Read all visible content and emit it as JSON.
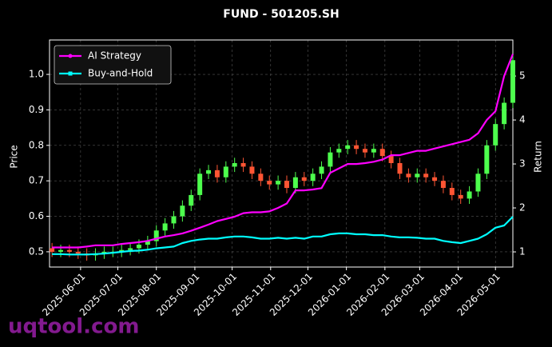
{
  "chart_data": {
    "type": "candlestick",
    "title": "FUND - 501205.SH",
    "ylabel": "Price",
    "y2label": "Return",
    "watermark": "uqtool.com",
    "legend": "upper left",
    "grid": true,
    "up_color": "#4dff4d",
    "down_color": "#ff5533",
    "x": [
      "2025-05-09",
      "2025-05-16",
      "2025-05-23",
      "2025-05-30",
      "2025-06-06",
      "2025-06-13",
      "2025-06-20",
      "2025-06-27",
      "2025-07-04",
      "2025-07-11",
      "2025-07-18",
      "2025-07-25",
      "2025-08-01",
      "2025-08-08",
      "2025-08-15",
      "2025-08-22",
      "2025-08-29",
      "2025-09-05",
      "2025-09-12",
      "2025-09-19",
      "2025-09-26",
      "2025-10-03",
      "2025-10-10",
      "2025-10-17",
      "2025-10-24",
      "2025-10-31",
      "2025-11-07",
      "2025-11-14",
      "2025-11-21",
      "2025-11-28",
      "2025-12-05",
      "2025-12-12",
      "2025-12-19",
      "2025-12-26",
      "2026-01-02",
      "2026-01-09",
      "2026-01-16",
      "2026-01-23",
      "2026-01-30",
      "2026-02-06",
      "2026-02-13",
      "2026-02-20",
      "2026-02-27",
      "2026-03-06",
      "2026-03-13",
      "2026-03-20",
      "2026-03-27",
      "2026-04-03",
      "2026-04-10",
      "2026-04-17",
      "2026-04-24",
      "2026-05-01",
      "2026-05-08",
      "2026-05-15"
    ],
    "open": [
      0.51,
      0.5,
      0.505,
      0.5,
      0.495,
      0.49,
      0.495,
      0.5,
      0.5,
      0.505,
      0.51,
      0.52,
      0.53,
      0.56,
      0.58,
      0.6,
      0.63,
      0.66,
      0.72,
      0.73,
      0.71,
      0.74,
      0.75,
      0.74,
      0.72,
      0.7,
      0.69,
      0.7,
      0.68,
      0.71,
      0.7,
      0.72,
      0.74,
      0.78,
      0.79,
      0.8,
      0.79,
      0.78,
      0.79,
      0.77,
      0.75,
      0.72,
      0.71,
      0.72,
      0.71,
      0.7,
      0.68,
      0.66,
      0.65,
      0.67,
      0.72,
      0.8,
      0.86,
      0.92
    ],
    "high": [
      0.525,
      0.52,
      0.52,
      0.515,
      0.51,
      0.51,
      0.515,
      0.515,
      0.52,
      0.525,
      0.535,
      0.545,
      0.575,
      0.595,
      0.615,
      0.645,
      0.675,
      0.735,
      0.745,
      0.745,
      0.755,
      0.765,
      0.765,
      0.755,
      0.735,
      0.715,
      0.715,
      0.715,
      0.725,
      0.725,
      0.735,
      0.755,
      0.795,
      0.805,
      0.815,
      0.815,
      0.805,
      0.805,
      0.805,
      0.785,
      0.765,
      0.735,
      0.735,
      0.735,
      0.725,
      0.715,
      0.695,
      0.675,
      0.685,
      0.735,
      0.815,
      0.875,
      0.935,
      1.055
    ],
    "low": [
      0.485,
      0.485,
      0.485,
      0.48,
      0.475,
      0.475,
      0.48,
      0.485,
      0.485,
      0.49,
      0.495,
      0.505,
      0.515,
      0.545,
      0.565,
      0.585,
      0.615,
      0.645,
      0.705,
      0.695,
      0.695,
      0.725,
      0.725,
      0.705,
      0.685,
      0.675,
      0.675,
      0.665,
      0.665,
      0.685,
      0.685,
      0.705,
      0.725,
      0.765,
      0.775,
      0.775,
      0.765,
      0.765,
      0.755,
      0.735,
      0.705,
      0.695,
      0.695,
      0.695,
      0.685,
      0.665,
      0.645,
      0.635,
      0.635,
      0.655,
      0.705,
      0.785,
      0.845,
      0.905
    ],
    "close": [
      0.5,
      0.505,
      0.5,
      0.495,
      0.49,
      0.495,
      0.5,
      0.5,
      0.505,
      0.51,
      0.52,
      0.53,
      0.56,
      0.58,
      0.6,
      0.63,
      0.66,
      0.72,
      0.73,
      0.71,
      0.74,
      0.75,
      0.74,
      0.72,
      0.7,
      0.69,
      0.7,
      0.68,
      0.71,
      0.7,
      0.72,
      0.74,
      0.78,
      0.79,
      0.8,
      0.79,
      0.78,
      0.79,
      0.77,
      0.75,
      0.72,
      0.71,
      0.72,
      0.71,
      0.7,
      0.68,
      0.66,
      0.65,
      0.67,
      0.72,
      0.8,
      0.86,
      0.92,
      1.04
    ],
    "series": [
      {
        "name": "AI Strategy",
        "color": "#ff00ff",
        "axis": "y2",
        "values": [
          1.1,
          1.1,
          1.1,
          1.1,
          1.12,
          1.15,
          1.15,
          1.15,
          1.18,
          1.2,
          1.22,
          1.25,
          1.3,
          1.35,
          1.38,
          1.42,
          1.48,
          1.55,
          1.62,
          1.7,
          1.75,
          1.8,
          1.88,
          1.9,
          1.9,
          1.92,
          2.0,
          2.1,
          2.4,
          2.4,
          2.42,
          2.45,
          2.8,
          2.9,
          3.0,
          3.0,
          3.02,
          3.05,
          3.1,
          3.2,
          3.2,
          3.25,
          3.3,
          3.3,
          3.35,
          3.4,
          3.45,
          3.5,
          3.55,
          3.7,
          4.0,
          4.2,
          5.0,
          5.5
        ]
      },
      {
        "name": "Buy-and-Hold",
        "color": "#00ffff",
        "axis": "y2",
        "values": [
          0.95,
          0.95,
          0.94,
          0.94,
          0.94,
          0.95,
          0.96,
          0.98,
          1.0,
          1.02,
          1.03,
          1.05,
          1.08,
          1.1,
          1.12,
          1.2,
          1.25,
          1.28,
          1.3,
          1.3,
          1.33,
          1.35,
          1.35,
          1.33,
          1.3,
          1.3,
          1.32,
          1.3,
          1.32,
          1.3,
          1.35,
          1.35,
          1.4,
          1.42,
          1.42,
          1.4,
          1.4,
          1.38,
          1.38,
          1.35,
          1.33,
          1.33,
          1.32,
          1.3,
          1.3,
          1.25,
          1.22,
          1.2,
          1.25,
          1.3,
          1.4,
          1.55,
          1.6,
          1.8
        ]
      }
    ],
    "xlim": [
      "2025-05-07",
      "2026-05-15"
    ],
    "xticks": [
      "2025-06-01",
      "2025-07-01",
      "2025-08-01",
      "2025-09-01",
      "2025-10-01",
      "2025-11-01",
      "2025-12-01",
      "2026-01-01",
      "2026-02-01",
      "2026-03-01",
      "2026-04-01",
      "2026-05-01"
    ],
    "ylim": [
      0.457,
      1.097
    ],
    "yticks": [
      0.5,
      0.6,
      0.7,
      0.8,
      0.9,
      {
        "value": 1,
        "label": "1.0"
      }
    ],
    "y2lim": [
      0.655,
      5.82
    ],
    "y2ticks": [
      1,
      2,
      3,
      4,
      5
    ]
  }
}
